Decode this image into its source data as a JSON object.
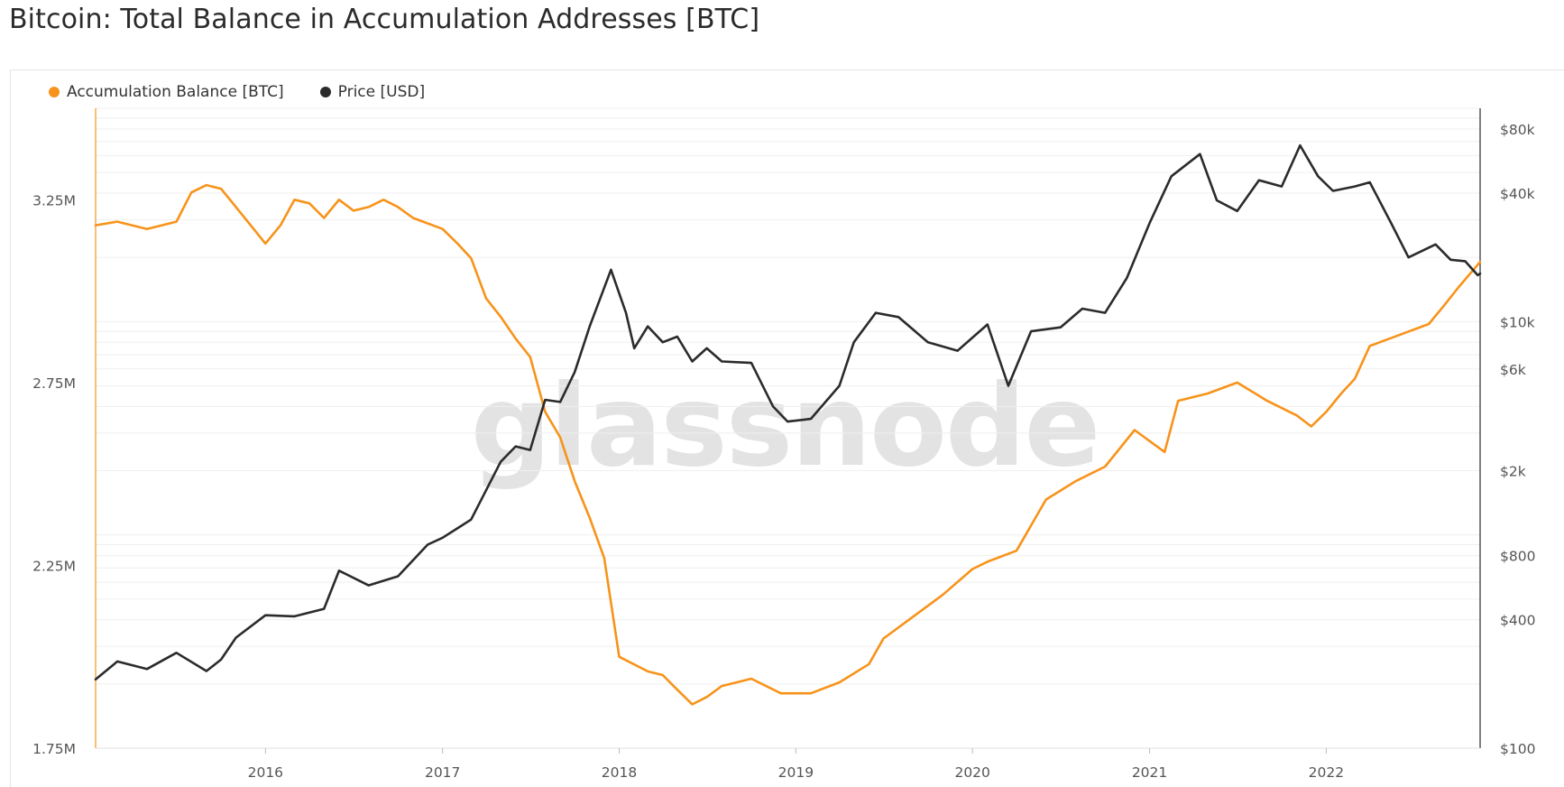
{
  "title": "Bitcoin: Total Balance in Accumulation Addresses [BTC]",
  "watermark": "glassnode",
  "legend": [
    {
      "label": "Accumulation Balance [BTC]",
      "color": "#f7931a"
    },
    {
      "label": "Price [USD]",
      "color": "#2b2b2b"
    }
  ],
  "chart_data": {
    "type": "line",
    "x_axis": {
      "type": "time",
      "range": [
        "2015-01-15",
        "2022-11-15"
      ],
      "ticks": [
        "2016",
        "2017",
        "2018",
        "2019",
        "2020",
        "2021",
        "2022"
      ]
    },
    "y_left": {
      "ylim": [
        1750000,
        3500000
      ],
      "ticks": [
        1750000,
        2250000,
        2750000,
        3250000
      ],
      "tick_labels": [
        "1.75M",
        "2.25M",
        "2.75M",
        "3.25M"
      ]
    },
    "y_right": {
      "scale": "log",
      "ylim": [
        100,
        100000
      ],
      "ticks": [
        100,
        400,
        800,
        2000,
        6000,
        10000,
        40000,
        80000
      ],
      "tick_labels": [
        "$100",
        "$400",
        "$800",
        "$2k",
        "$6k",
        "$10k",
        "$40k",
        "$80k"
      ]
    },
    "grid": true,
    "series": [
      {
        "name": "Accumulation Balance [BTC]",
        "axis": "left",
        "color": "#f7931a",
        "points": [
          [
            "2015-01-15",
            3180000
          ],
          [
            "2015-03-01",
            3190000
          ],
          [
            "2015-05-01",
            3170000
          ],
          [
            "2015-07-01",
            3190000
          ],
          [
            "2015-08-01",
            3270000
          ],
          [
            "2015-09-01",
            3290000
          ],
          [
            "2015-10-01",
            3280000
          ],
          [
            "2015-11-01",
            3230000
          ],
          [
            "2016-01-01",
            3130000
          ],
          [
            "2016-02-01",
            3180000
          ],
          [
            "2016-03-01",
            3250000
          ],
          [
            "2016-04-01",
            3240000
          ],
          [
            "2016-05-01",
            3200000
          ],
          [
            "2016-06-01",
            3250000
          ],
          [
            "2016-07-01",
            3220000
          ],
          [
            "2016-08-01",
            3230000
          ],
          [
            "2016-09-01",
            3250000
          ],
          [
            "2016-10-01",
            3230000
          ],
          [
            "2016-11-01",
            3200000
          ],
          [
            "2017-01-01",
            3170000
          ],
          [
            "2017-02-01",
            3130000
          ],
          [
            "2017-03-01",
            3090000
          ],
          [
            "2017-04-01",
            2980000
          ],
          [
            "2017-05-01",
            2930000
          ],
          [
            "2017-06-01",
            2870000
          ],
          [
            "2017-07-01",
            2820000
          ],
          [
            "2017-08-01",
            2670000
          ],
          [
            "2017-09-01",
            2600000
          ],
          [
            "2017-10-01",
            2480000
          ],
          [
            "2017-11-01",
            2380000
          ],
          [
            "2017-12-01",
            2270000
          ],
          [
            "2018-01-01",
            2000000
          ],
          [
            "2018-03-01",
            1960000
          ],
          [
            "2018-04-01",
            1950000
          ],
          [
            "2018-05-01",
            1910000
          ],
          [
            "2018-06-01",
            1870000
          ],
          [
            "2018-07-01",
            1890000
          ],
          [
            "2018-08-01",
            1920000
          ],
          [
            "2018-10-01",
            1940000
          ],
          [
            "2018-12-01",
            1900000
          ],
          [
            "2019-02-01",
            1900000
          ],
          [
            "2019-04-01",
            1930000
          ],
          [
            "2019-06-01",
            1980000
          ],
          [
            "2019-07-01",
            2050000
          ],
          [
            "2019-09-01",
            2110000
          ],
          [
            "2019-11-01",
            2170000
          ],
          [
            "2020-01-01",
            2240000
          ],
          [
            "2020-02-01",
            2260000
          ],
          [
            "2020-04-01",
            2290000
          ],
          [
            "2020-06-01",
            2430000
          ],
          [
            "2020-08-01",
            2480000
          ],
          [
            "2020-10-01",
            2520000
          ],
          [
            "2020-12-01",
            2620000
          ],
          [
            "2021-02-01",
            2560000
          ],
          [
            "2021-03-01",
            2700000
          ],
          [
            "2021-05-01",
            2720000
          ],
          [
            "2021-07-01",
            2750000
          ],
          [
            "2021-09-01",
            2700000
          ],
          [
            "2021-11-01",
            2660000
          ],
          [
            "2021-12-01",
            2630000
          ],
          [
            "2022-01-01",
            2670000
          ],
          [
            "2022-02-01",
            2720000
          ],
          [
            "2022-03-01",
            2760000
          ],
          [
            "2022-04-01",
            2850000
          ],
          [
            "2022-06-01",
            2880000
          ],
          [
            "2022-08-01",
            2910000
          ],
          [
            "2022-09-01",
            2960000
          ],
          [
            "2022-10-01",
            3010000
          ],
          [
            "2022-11-15",
            3080000
          ]
        ]
      },
      {
        "name": "Price [USD]",
        "axis": "right",
        "color": "#2b2b2b",
        "points": [
          [
            "2015-01-15",
            210
          ],
          [
            "2015-03-01",
            255
          ],
          [
            "2015-05-01",
            235
          ],
          [
            "2015-07-01",
            280
          ],
          [
            "2015-09-01",
            230
          ],
          [
            "2015-10-01",
            260
          ],
          [
            "2015-11-01",
            330
          ],
          [
            "2016-01-01",
            420
          ],
          [
            "2016-03-01",
            415
          ],
          [
            "2016-05-01",
            450
          ],
          [
            "2016-06-01",
            680
          ],
          [
            "2016-08-01",
            580
          ],
          [
            "2016-10-01",
            640
          ],
          [
            "2016-12-01",
            900
          ],
          [
            "2017-01-01",
            970
          ],
          [
            "2017-03-01",
            1180
          ],
          [
            "2017-05-01",
            2200
          ],
          [
            "2017-06-01",
            2600
          ],
          [
            "2017-07-01",
            2500
          ],
          [
            "2017-08-01",
            4300
          ],
          [
            "2017-09-01",
            4200
          ],
          [
            "2017-10-01",
            5800
          ],
          [
            "2017-11-01",
            9500
          ],
          [
            "2017-12-15",
            17500
          ],
          [
            "2018-01-15",
            11000
          ],
          [
            "2018-02-01",
            7500
          ],
          [
            "2018-03-01",
            9500
          ],
          [
            "2018-04-01",
            8000
          ],
          [
            "2018-05-01",
            8500
          ],
          [
            "2018-06-01",
            6500
          ],
          [
            "2018-07-01",
            7500
          ],
          [
            "2018-08-01",
            6500
          ],
          [
            "2018-10-01",
            6400
          ],
          [
            "2018-11-15",
            4000
          ],
          [
            "2018-12-15",
            3400
          ],
          [
            "2019-02-01",
            3500
          ],
          [
            "2019-04-01",
            5000
          ],
          [
            "2019-05-01",
            8000
          ],
          [
            "2019-06-15",
            11000
          ],
          [
            "2019-08-01",
            10500
          ],
          [
            "2019-10-01",
            8000
          ],
          [
            "2019-12-01",
            7300
          ],
          [
            "2020-02-01",
            9700
          ],
          [
            "2020-03-15",
            5000
          ],
          [
            "2020-05-01",
            9000
          ],
          [
            "2020-07-01",
            9400
          ],
          [
            "2020-08-15",
            11500
          ],
          [
            "2020-10-01",
            11000
          ],
          [
            "2020-11-15",
            16000
          ],
          [
            "2021-01-01",
            29000
          ],
          [
            "2021-02-15",
            48000
          ],
          [
            "2021-04-15",
            61000
          ],
          [
            "2021-05-20",
            37000
          ],
          [
            "2021-07-01",
            33000
          ],
          [
            "2021-08-15",
            46000
          ],
          [
            "2021-10-01",
            43000
          ],
          [
            "2021-11-08",
            67000
          ],
          [
            "2021-12-15",
            48000
          ],
          [
            "2022-01-15",
            41000
          ],
          [
            "2022-03-01",
            43000
          ],
          [
            "2022-04-01",
            45000
          ],
          [
            "2022-05-15",
            29000
          ],
          [
            "2022-06-20",
            20000
          ],
          [
            "2022-08-15",
            23000
          ],
          [
            "2022-09-15",
            19500
          ],
          [
            "2022-10-15",
            19200
          ],
          [
            "2022-11-10",
            16500
          ],
          [
            "2022-11-15",
            16800
          ]
        ]
      }
    ]
  }
}
